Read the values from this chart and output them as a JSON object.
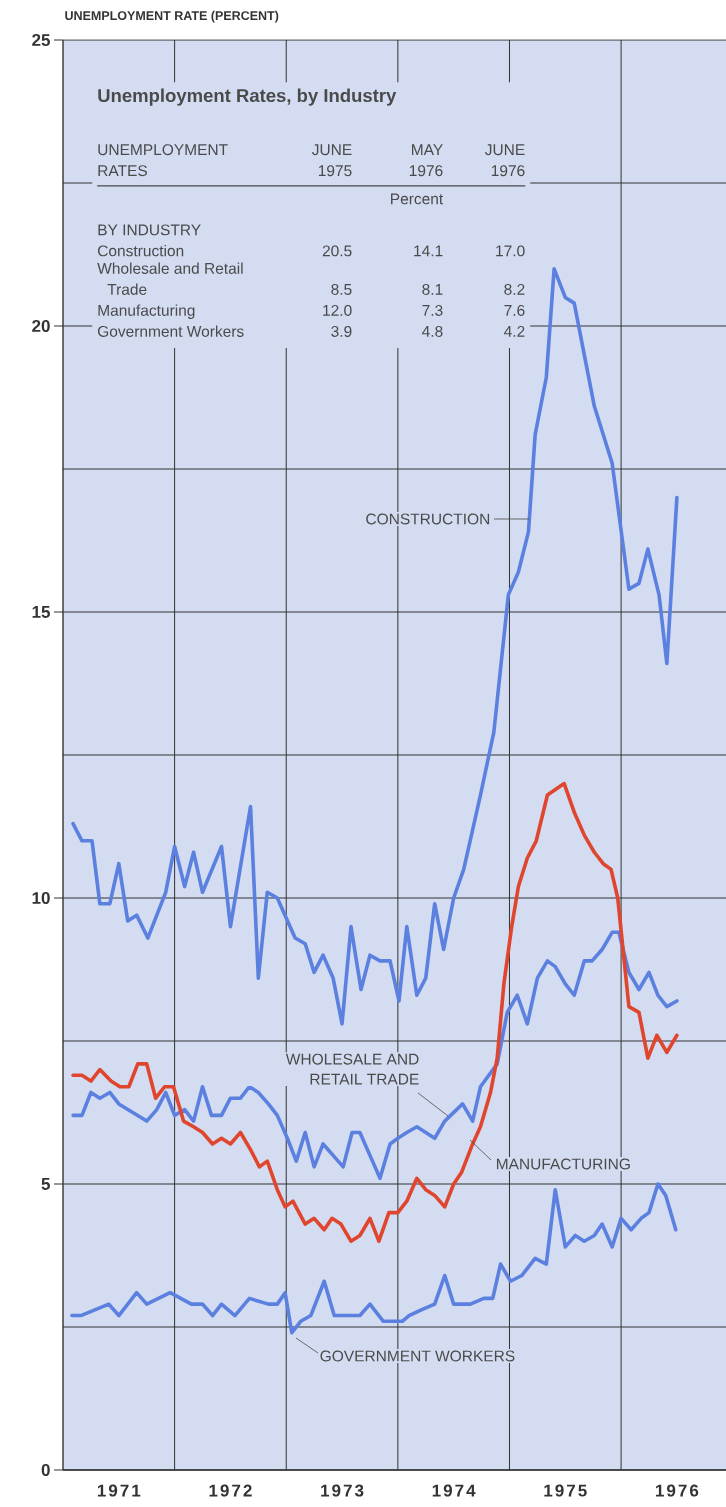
{
  "chart_data": {
    "type": "line",
    "title": "Unemployment Rates, by Industry",
    "ylabel": "UNEMPLOYMENT RATE (PERCENT)",
    "annotations": [
      "UNEMPLOYMENT RATES",
      "JUNE 1975",
      "MAY 1976",
      "JUNE 1976",
      "Percent",
      "BY INDUSTRY",
      "Construction",
      "20.5",
      "14.1",
      "17.0",
      "Wholesale and Retail Trade",
      "8.5",
      "8.1",
      "8.2",
      "Manufacturing",
      "12.0",
      "7.3",
      "7.6",
      "Government Workers",
      "3.9",
      "4.8",
      "4.2"
    ],
    "xlim": [
      1971,
      1976.94
    ],
    "ylim": [
      0,
      25
    ],
    "xticks": [
      {
        "value": 1971.5,
        "label": "1971"
      },
      {
        "value": 1972.5,
        "label": "1972"
      },
      {
        "value": 1973.5,
        "label": "1973"
      },
      {
        "value": 1974.5,
        "label": "1974"
      },
      {
        "value": 1975.5,
        "label": "1975"
      },
      {
        "value": 1976.5,
        "label": "1976"
      },
      {
        "value": 1972,
        "label": null
      },
      {
        "value": 1973,
        "label": null
      },
      {
        "value": 1974,
        "label": null
      },
      {
        "value": 1975,
        "label": null
      },
      {
        "value": 1976,
        "label": null
      }
    ],
    "yticks": [
      0,
      {
        "value": 2.5,
        "label": null
      },
      5,
      {
        "value": 7.5,
        "label": null
      },
      10,
      {
        "value": 12.5,
        "label": null
      },
      15,
      {
        "value": 17.5,
        "label": null
      },
      20,
      {
        "value": 22.5,
        "label": null
      },
      25
    ],
    "grid": true,
    "series": [
      {
        "name": "CONSTRUCTION",
        "color": "#5b80e0",
        "x": [
          1971.09,
          1971.17,
          1971.26,
          1971.33,
          1971.42,
          1971.5,
          1971.58,
          1971.66,
          1971.76,
          1971.92,
          1972.0,
          1972.09,
          1972.17,
          1972.25,
          1972.42,
          1972.5,
          1972.68,
          1972.75,
          1972.83,
          1972.92,
          1973.08,
          1973.17,
          1973.25,
          1973.33,
          1973.42,
          1973.5,
          1973.58,
          1973.67,
          1973.75,
          1973.84,
          1973.93,
          1974.01,
          1974.08,
          1974.17,
          1974.25,
          1974.33,
          1974.41,
          1974.5,
          1974.59,
          1974.74,
          1974.86,
          1974.99,
          1975.08,
          1975.17,
          1975.23,
          1975.33,
          1975.4,
          1975.5,
          1975.58,
          1975.76,
          1975.92,
          1976.07,
          1976.16,
          1976.24,
          1976.34,
          1976.41,
          1976.5
        ],
        "values": [
          11.3,
          11.0,
          11.0,
          9.9,
          9.9,
          10.6,
          9.6,
          9.7,
          9.3,
          10.1,
          10.9,
          10.2,
          10.8,
          10.1,
          10.9,
          9.5,
          11.6,
          8.6,
          10.1,
          10.0,
          9.3,
          9.2,
          8.7,
          9.0,
          8.6,
          7.8,
          9.5,
          8.4,
          9.0,
          8.9,
          8.9,
          8.2,
          9.5,
          8.3,
          8.6,
          9.9,
          9.1,
          10.0,
          10.5,
          11.8,
          12.9,
          15.3,
          15.7,
          16.4,
          18.1,
          19.1,
          21.0,
          20.5,
          20.4,
          18.6,
          17.6,
          15.4,
          15.5,
          16.1,
          15.3,
          14.1,
          17.0
        ]
      },
      {
        "name": "WHOLESALE AND RETAIL TRADE",
        "color": "#5b80e0",
        "x": [
          1971.09,
          1971.17,
          1971.25,
          1971.33,
          1971.42,
          1971.5,
          1971.75,
          1971.84,
          1971.92,
          1972.0,
          1972.09,
          1972.17,
          1972.25,
          1972.33,
          1972.42,
          1972.5,
          1972.59,
          1972.67,
          1972.75,
          1972.84,
          1972.92,
          1973.01,
          1973.09,
          1973.17,
          1973.25,
          1973.33,
          1973.42,
          1973.51,
          1973.59,
          1973.66,
          1973.75,
          1973.84,
          1973.93,
          1974.0,
          1974.08,
          1974.17,
          1974.25,
          1974.33,
          1974.42,
          1974.58,
          1974.67,
          1974.74,
          1974.89,
          1974.98,
          1975.07,
          1975.16,
          1975.25,
          1975.34,
          1975.41,
          1975.5,
          1975.58,
          1975.67,
          1975.74,
          1975.83,
          1975.92,
          1975.98,
          1976.07,
          1976.16,
          1976.25,
          1976.33,
          1976.41,
          1976.5
        ],
        "values": [
          6.2,
          6.2,
          6.6,
          6.5,
          6.6,
          6.4,
          6.1,
          6.3,
          6.6,
          6.2,
          6.3,
          6.1,
          6.7,
          6.2,
          6.2,
          6.5,
          6.5,
          6.7,
          6.6,
          6.4,
          6.2,
          5.8,
          5.4,
          5.9,
          5.3,
          5.7,
          5.5,
          5.3,
          5.9,
          5.9,
          5.5,
          5.1,
          5.7,
          5.8,
          5.9,
          6.0,
          5.9,
          5.8,
          6.1,
          6.4,
          6.1,
          6.7,
          7.1,
          8.0,
          8.3,
          7.8,
          8.6,
          8.9,
          8.8,
          8.5,
          8.3,
          8.9,
          8.9,
          9.1,
          9.4,
          9.4,
          8.7,
          8.4,
          8.7,
          8.3,
          8.1,
          8.2
        ]
      },
      {
        "name": "MANUFACTURING",
        "color": "#e0452e",
        "x": [
          1971.09,
          1971.17,
          1971.25,
          1971.33,
          1971.43,
          1971.51,
          1971.59,
          1971.67,
          1971.75,
          1971.83,
          1971.91,
          1971.99,
          1972.08,
          1972.17,
          1972.25,
          1972.34,
          1972.42,
          1972.5,
          1972.59,
          1972.68,
          1972.76,
          1972.83,
          1972.92,
          1972.99,
          1973.06,
          1973.17,
          1973.25,
          1973.34,
          1973.41,
          1973.49,
          1973.58,
          1973.66,
          1973.75,
          1973.83,
          1973.92,
          1974.0,
          1974.08,
          1974.17,
          1974.25,
          1974.33,
          1974.42,
          1974.5,
          1974.57,
          1974.67,
          1974.74,
          1974.83,
          1974.89,
          1974.95,
          1975.02,
          1975.08,
          1975.16,
          1975.24,
          1975.34,
          1975.49,
          1975.58,
          1975.67,
          1975.76,
          1975.84,
          1975.91,
          1975.97,
          1976.07,
          1976.16,
          1976.24,
          1976.32,
          1976.41,
          1976.5
        ],
        "values": [
          6.9,
          6.9,
          6.8,
          7.0,
          6.8,
          6.7,
          6.7,
          7.1,
          7.1,
          6.5,
          6.7,
          6.7,
          6.1,
          6.0,
          5.9,
          5.7,
          5.8,
          5.7,
          5.9,
          5.6,
          5.3,
          5.4,
          4.9,
          4.6,
          4.7,
          4.3,
          4.4,
          4.2,
          4.4,
          4.3,
          4.0,
          4.1,
          4.4,
          4.0,
          4.5,
          4.5,
          4.7,
          5.1,
          4.9,
          4.8,
          4.6,
          5.0,
          5.2,
          5.7,
          6.0,
          6.6,
          7.2,
          8.5,
          9.5,
          10.2,
          10.7,
          11.0,
          11.8,
          12.0,
          11.5,
          11.1,
          10.8,
          10.6,
          10.5,
          10.0,
          8.1,
          8.0,
          7.2,
          7.6,
          7.3,
          7.6
        ]
      },
      {
        "name": "GOVERNMENT WORKERS",
        "color": "#5b80e0",
        "x": [
          1971.08,
          1971.16,
          1971.41,
          1971.5,
          1971.66,
          1971.75,
          1971.96,
          1972.15,
          1972.25,
          1972.34,
          1972.42,
          1972.54,
          1972.67,
          1972.84,
          1972.92,
          1972.99,
          1973.05,
          1973.13,
          1973.22,
          1973.34,
          1973.43,
          1973.58,
          1973.66,
          1973.75,
          1973.87,
          1973.95,
          1974.04,
          1974.1,
          1974.21,
          1974.33,
          1974.42,
          1974.5,
          1974.65,
          1974.77,
          1974.85,
          1974.92,
          1975.01,
          1975.11,
          1975.23,
          1975.33,
          1975.41,
          1975.5,
          1975.59,
          1975.67,
          1975.76,
          1975.83,
          1975.92,
          1976.0,
          1976.09,
          1976.18,
          1976.25,
          1976.33,
          1976.4,
          1976.49
        ],
        "values": [
          2.7,
          2.7,
          2.9,
          2.7,
          3.1,
          2.9,
          3.1,
          2.9,
          2.9,
          2.7,
          2.9,
          2.7,
          3.0,
          2.9,
          2.9,
          3.1,
          2.4,
          2.6,
          2.7,
          3.3,
          2.7,
          2.7,
          2.7,
          2.9,
          2.6,
          2.6,
          2.6,
          2.7,
          2.8,
          2.9,
          3.4,
          2.9,
          2.9,
          3.0,
          3.0,
          3.6,
          3.3,
          3.4,
          3.7,
          3.6,
          4.9,
          3.9,
          4.1,
          4.0,
          4.1,
          4.3,
          3.9,
          4.4,
          4.2,
          4.4,
          4.5,
          5.0,
          4.8,
          4.2
        ]
      }
    ]
  }
}
